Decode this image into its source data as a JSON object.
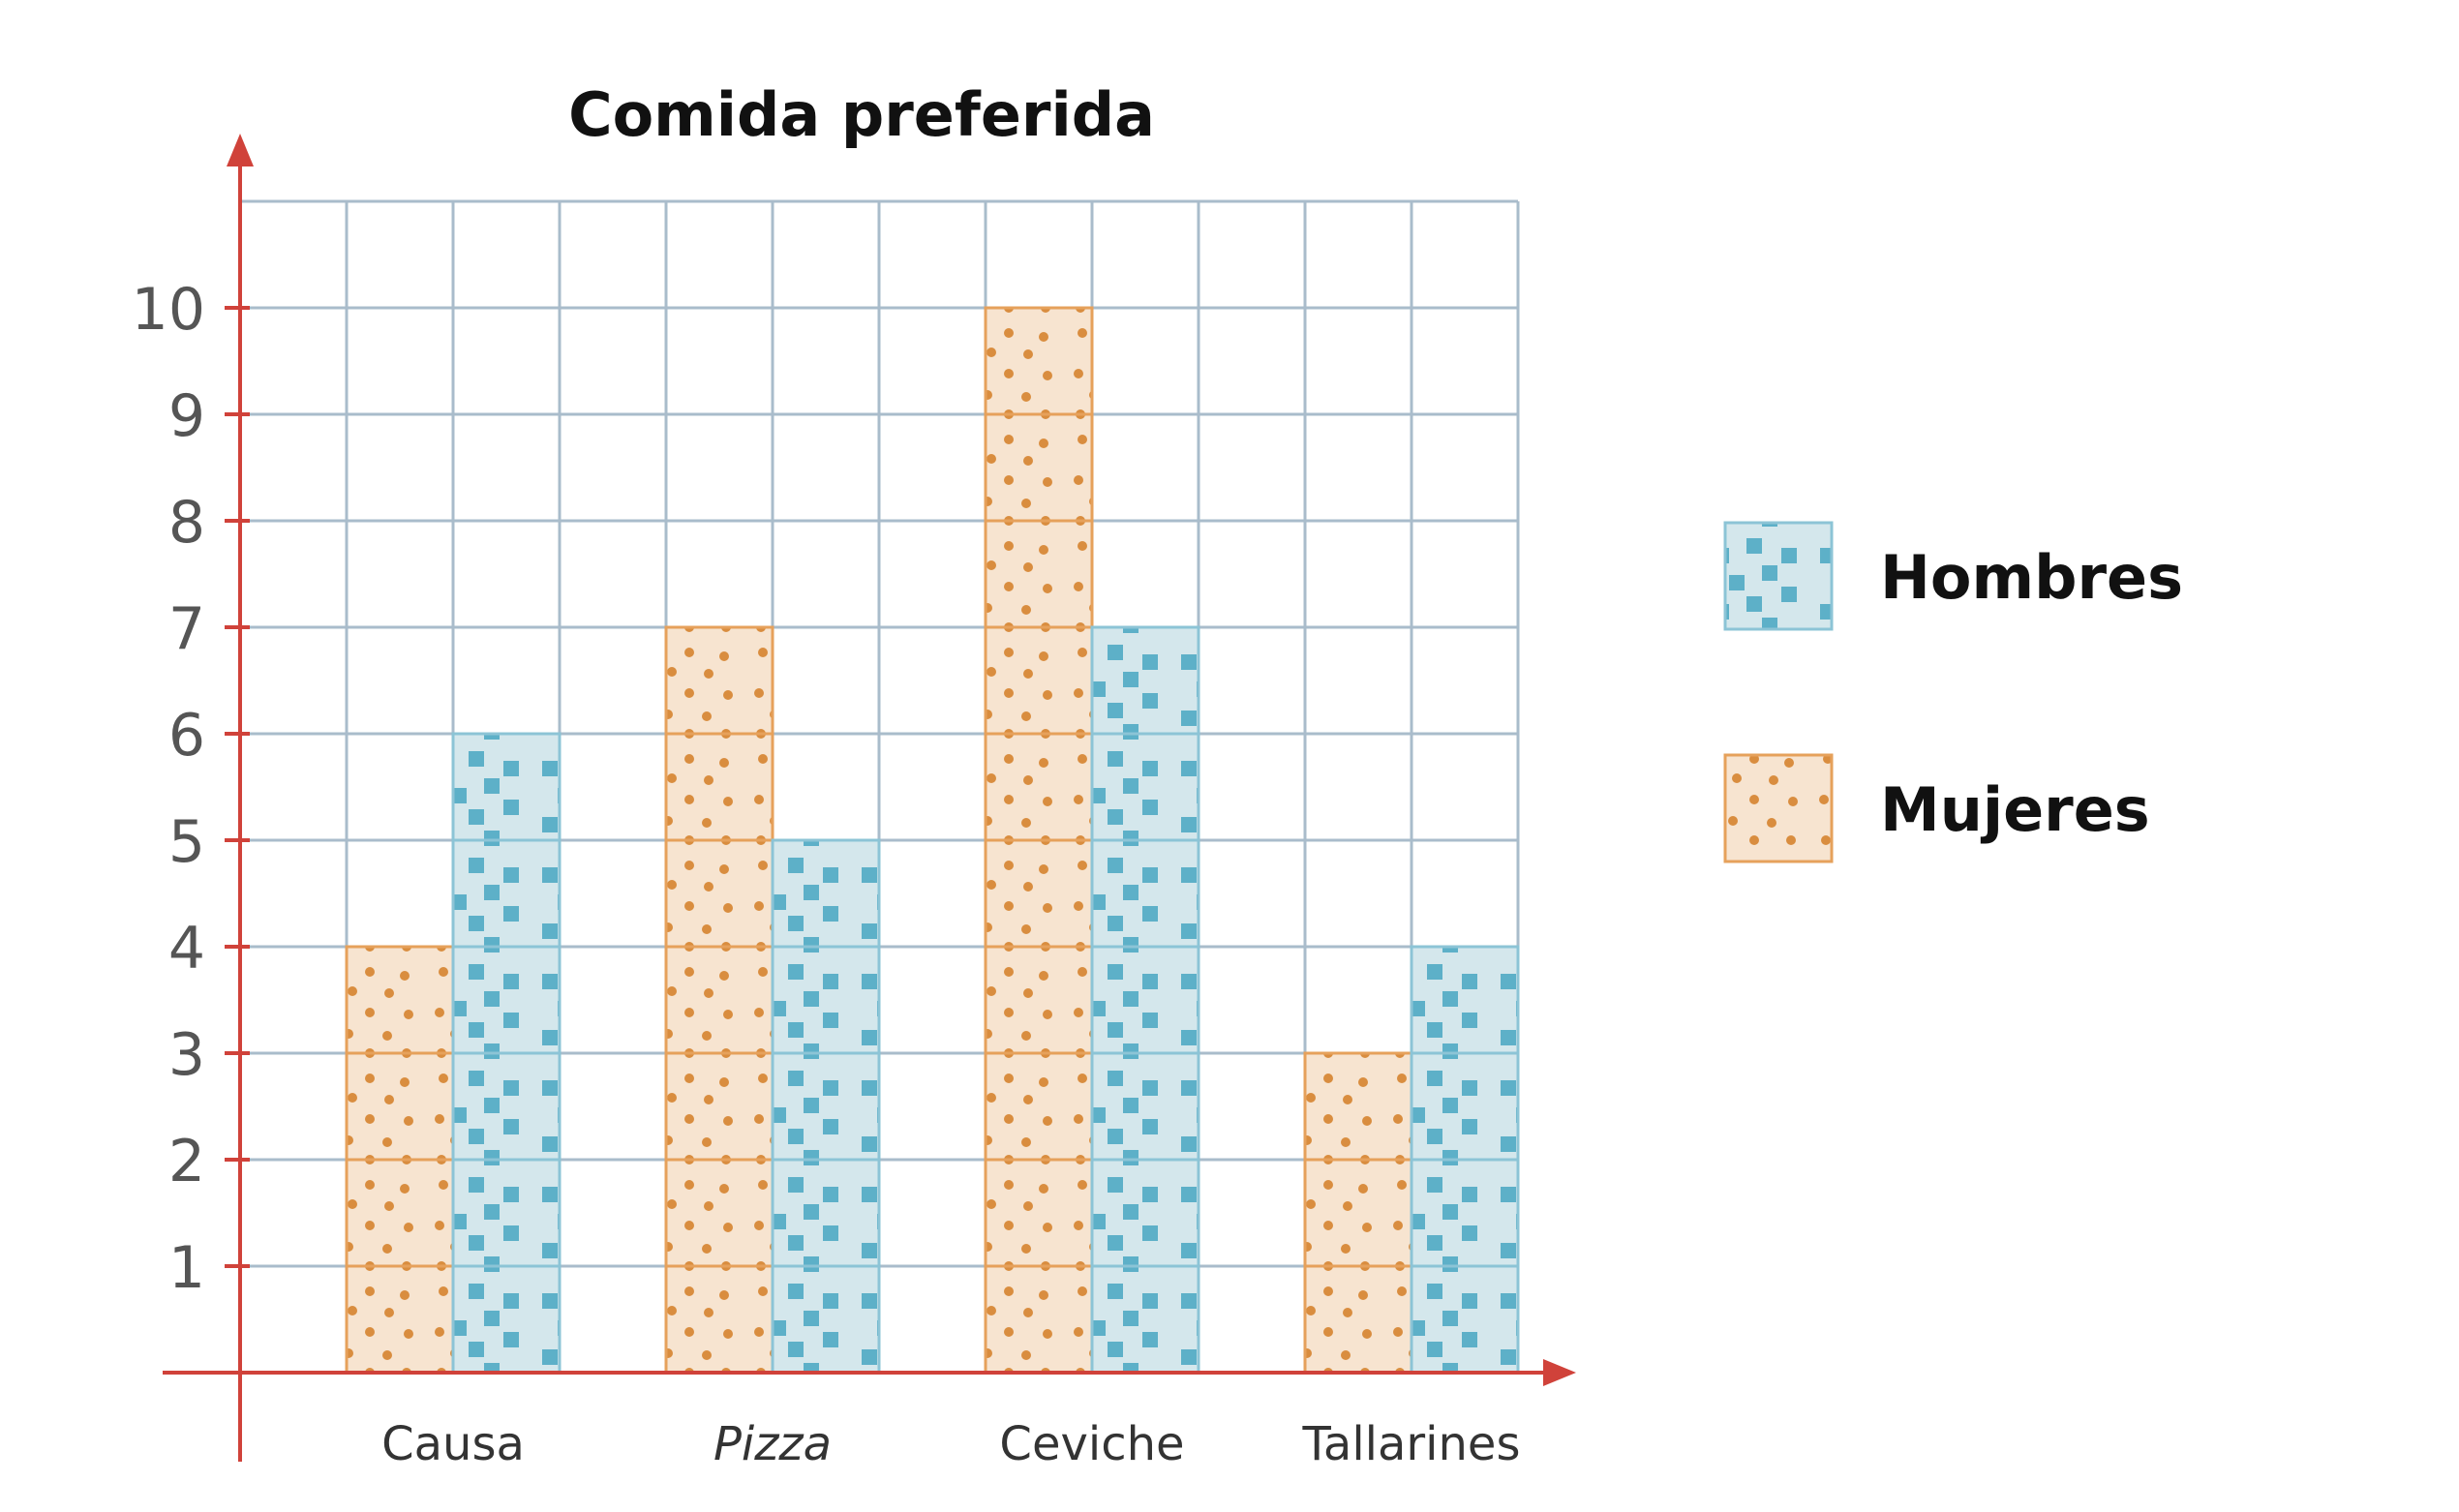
{
  "chart_data": {
    "type": "bar",
    "title": "Comida preferida",
    "categories": [
      "Causa",
      "Pizza",
      "Ceviche",
      "Tallarines"
    ],
    "italic_categories": [
      "Pizza"
    ],
    "series": [
      {
        "name": "Mujeres",
        "values": [
          4,
          7,
          10,
          3
        ],
        "color": "#f7e4d0",
        "border": "#e6a15b",
        "pattern": "dots",
        "pattern_color": "#d98d3f"
      },
      {
        "name": "Hombres",
        "values": [
          6,
          5,
          7,
          4
        ],
        "color": "#d4e7ec",
        "border": "#8cc4d6",
        "pattern": "squares",
        "pattern_color": "#5db0c8"
      }
    ],
    "yticks": [
      1,
      2,
      3,
      4,
      5,
      6,
      7,
      8,
      9,
      10
    ],
    "ylim": [
      0,
      11
    ],
    "grid": true,
    "legend_position": "right",
    "legend_order": [
      "Hombres",
      "Mujeres"
    ],
    "axis_color": "#d0423a",
    "grid_color": "#a9bccb"
  }
}
